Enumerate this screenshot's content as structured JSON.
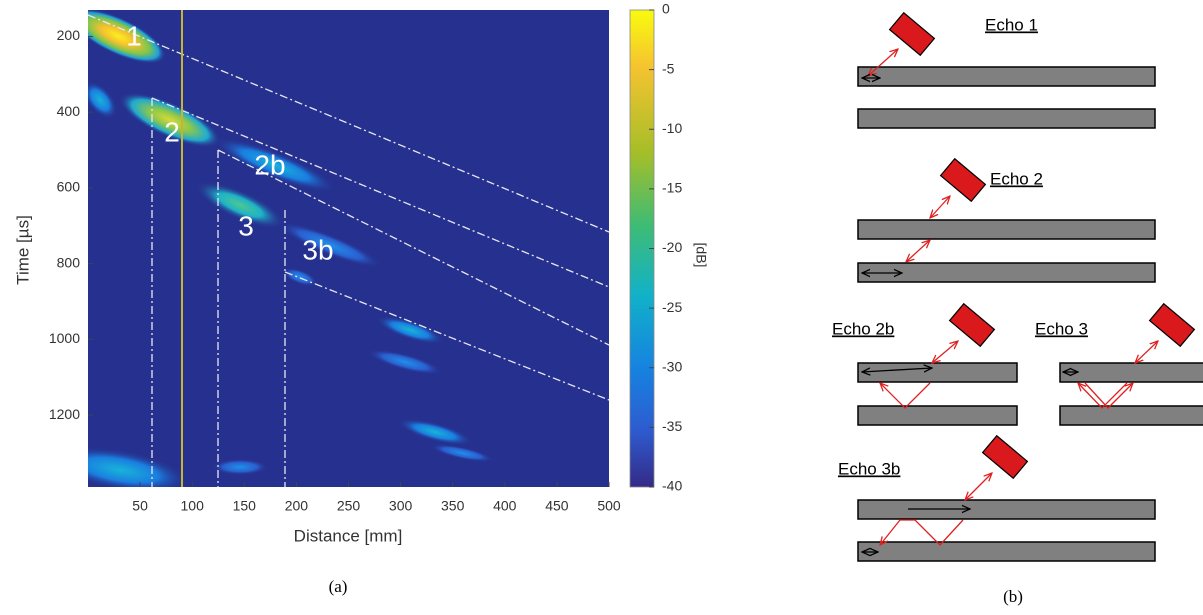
{
  "figure": {
    "panel_a": {
      "xlabel": "Distance [mm]",
      "ylabel": "Time [µs]",
      "xlim": [
        0,
        500
      ],
      "ylim": [
        1390,
        130
      ],
      "xticks": [
        50,
        100,
        150,
        200,
        250,
        300,
        350,
        400,
        450,
        500
      ],
      "yticks": [
        200,
        400,
        600,
        800,
        1000,
        1200
      ],
      "colorbar": {
        "label": "[dB]",
        "lim": [
          -40,
          0
        ],
        "ticks": [
          0,
          -5,
          -10,
          -15,
          -20,
          -25,
          -30,
          -35,
          -40
        ]
      },
      "annotations": [
        "1",
        "2",
        "2b",
        "3",
        "3b"
      ],
      "caption": "(a)"
    },
    "panel_b": {
      "echoes": [
        "Echo 1",
        "Echo 2",
        "Echo 2b",
        "Echo 3",
        "Echo 3b"
      ],
      "caption": "(b)"
    }
  }
}
